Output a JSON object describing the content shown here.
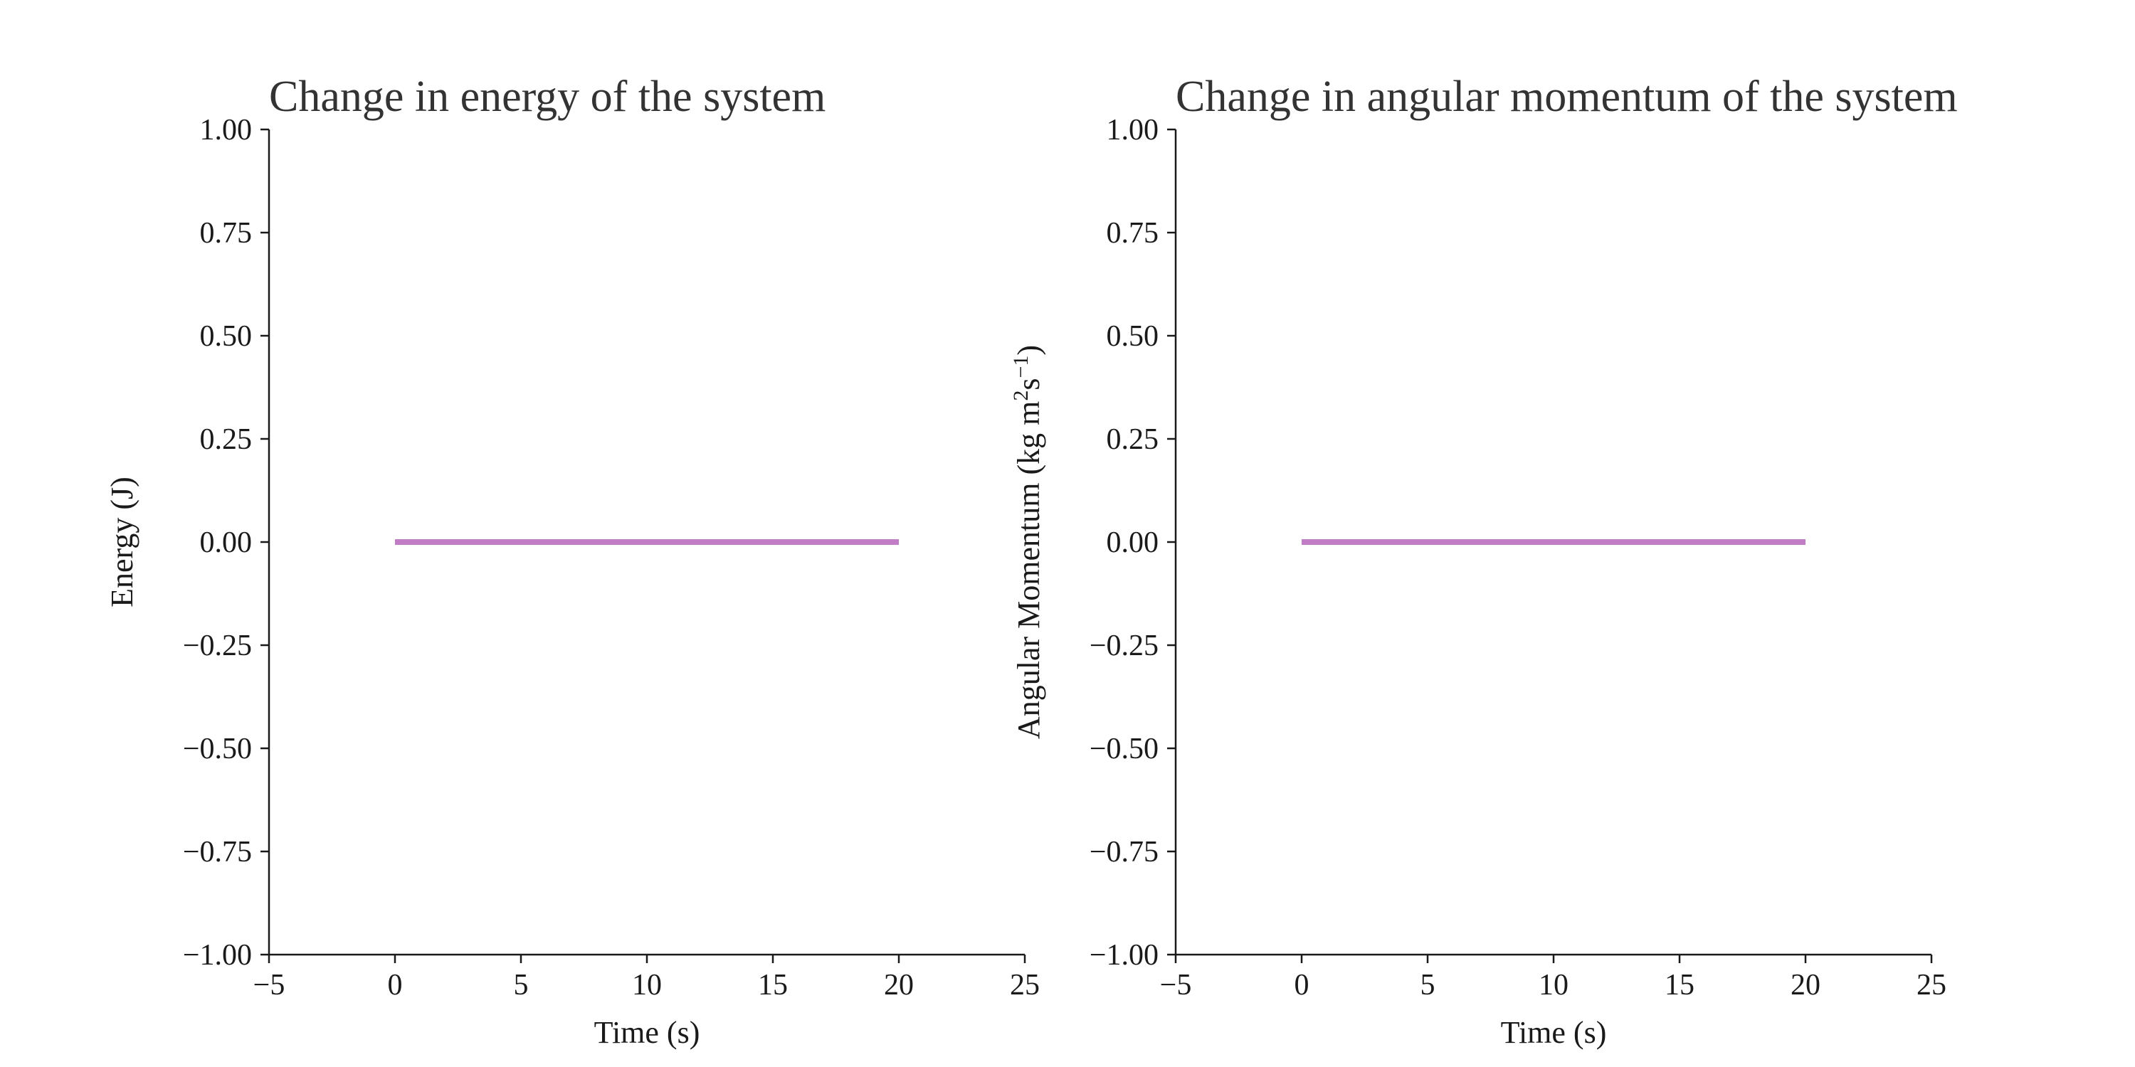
{
  "chart_data": [
    {
      "type": "line",
      "title": "Change in energy of the system",
      "xlabel": "Time (s)",
      "ylabel": "Energy (J)",
      "xlim": [
        -5,
        25
      ],
      "ylim": [
        -1.0,
        1.0
      ],
      "xticks": [
        -5,
        0,
        5,
        10,
        15,
        20,
        25
      ],
      "xtick_labels": [
        "−5",
        "0",
        "5",
        "10",
        "15",
        "20",
        "25"
      ],
      "yticks": [
        -1.0,
        -0.75,
        -0.5,
        -0.25,
        0.0,
        0.25,
        0.5,
        0.75,
        1.0
      ],
      "ytick_labels": [
        "−1.00",
        "−0.75",
        "−0.50",
        "−0.25",
        "0.00",
        "0.25",
        "0.50",
        "0.75",
        "1.00"
      ],
      "grid": false,
      "series": [
        {
          "x": [
            0,
            20
          ],
          "y": [
            0.0,
            0.0
          ],
          "color": "#c07cc4"
        }
      ]
    },
    {
      "type": "line",
      "title": "Change in angular momentum of the system",
      "xlabel": "Time (s)",
      "ylabel_parts": [
        "Angular Momentum (kg m",
        "2",
        "s",
        "−1",
        ")"
      ],
      "xlim": [
        -5,
        25
      ],
      "ylim": [
        -1.0,
        1.0
      ],
      "xticks": [
        -5,
        0,
        5,
        10,
        15,
        20,
        25
      ],
      "xtick_labels": [
        "−5",
        "0",
        "5",
        "10",
        "15",
        "20",
        "25"
      ],
      "yticks": [
        -1.0,
        -0.75,
        -0.5,
        -0.25,
        0.0,
        0.25,
        0.5,
        0.75,
        1.0
      ],
      "ytick_labels": [
        "−1.00",
        "−0.75",
        "−0.50",
        "−0.25",
        "0.00",
        "0.25",
        "0.50",
        "0.75",
        "1.00"
      ],
      "grid": false,
      "series": [
        {
          "x": [
            0,
            20
          ],
          "y": [
            0.0,
            0.0
          ],
          "color": "#c07cc4"
        }
      ]
    }
  ]
}
